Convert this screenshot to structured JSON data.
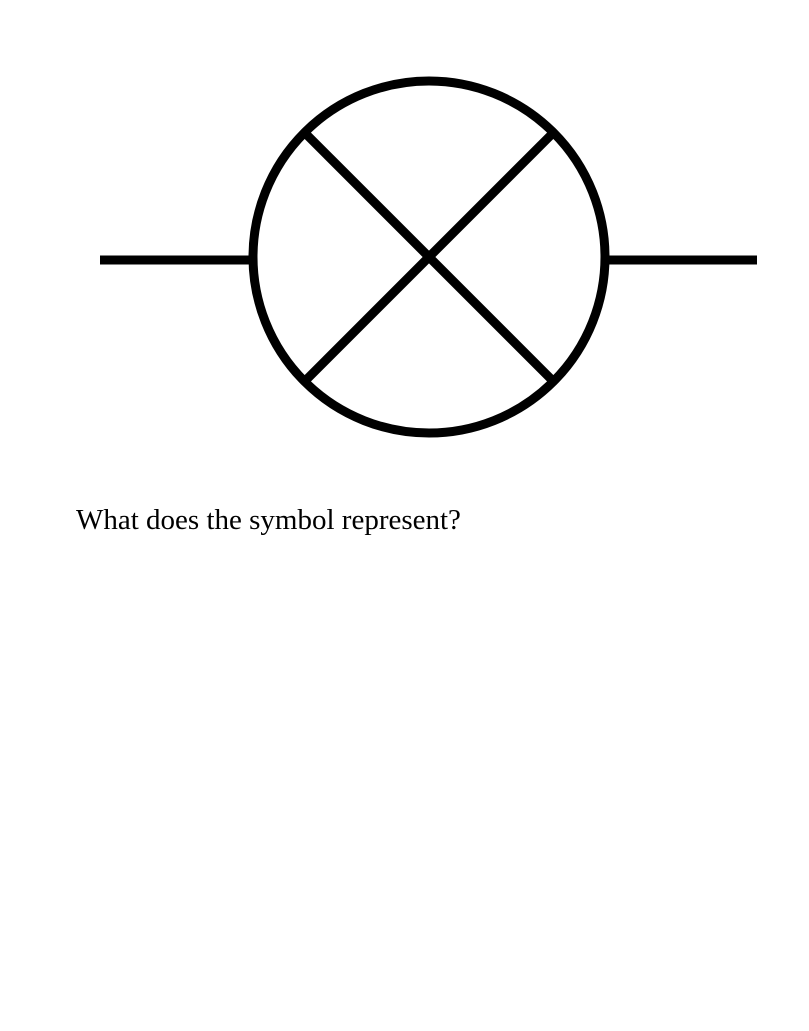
{
  "symbol": {
    "name": "lamp-symbol",
    "stroke_color": "#000000",
    "background_color": "#ffffff"
  },
  "question": {
    "text": "What does the symbol represent?",
    "color": "#000000"
  }
}
